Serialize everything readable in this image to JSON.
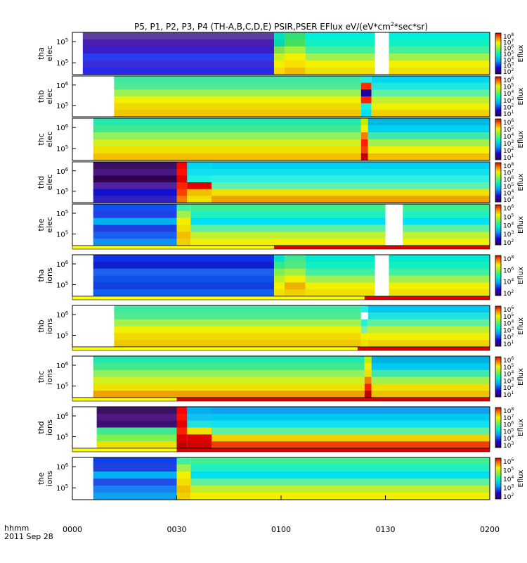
{
  "title": "P5, P1, P2, P3, P4 (TH-A,B,C,D,E) PSIR,PSER EFlux eV/(eV*cm",
  "title_sup": "2",
  "title_end": "*sec*sr)",
  "time_axis": {
    "label_line1": "hhmm",
    "label_line2": "2011 Sep 28",
    "ticks": [
      "0000",
      "0030",
      "0100",
      "0130",
      "0200"
    ],
    "range_minutes": [
      0,
      120
    ]
  },
  "colorbar_unit": "Eflux",
  "chart_data": [
    {
      "type": "heatmap",
      "label": [
        "tha",
        "elec"
      ],
      "yticks": [
        {
          "base": "10",
          "exp": "5"
        },
        {
          "base": "10",
          "exp": "5"
        }
      ],
      "colorbar_ticks": [
        {
          "base": "10",
          "exp": "8"
        },
        {
          "base": "10",
          "exp": "7"
        },
        {
          "base": "10",
          "exp": "6"
        },
        {
          "base": "10",
          "exp": "5"
        },
        {
          "base": "10",
          "exp": "4"
        },
        {
          "base": "10",
          "exp": "3"
        },
        {
          "base": "10",
          "exp": "2"
        }
      ],
      "columns": [
        {
          "x": [
            0,
            3
          ],
          "fill": "white"
        },
        {
          "x": [
            3,
            58
          ],
          "bands": [
            "#5a3f9f",
            "#4a1fb0",
            "#3a1ec8",
            "#2a3cf0",
            "#3a2fd6",
            "#2a28e8"
          ]
        },
        {
          "x": [
            58,
            61
          ],
          "bands": [
            "#00e0c0",
            "#00d8b0",
            "#7ee050",
            "#c8f020",
            "#f0f000",
            "#f8d800"
          ]
        },
        {
          "x": [
            61,
            67
          ],
          "bands": [
            "#30e070",
            "#40e060",
            "#a0f040",
            "#f0f000",
            "#f8e000",
            "#f0c000"
          ]
        },
        {
          "x": [
            67,
            87
          ],
          "bands": [
            "#00f0e0",
            "#10f0c0",
            "#40f0a0",
            "#a0f050",
            "#f0f000",
            "#f0e000"
          ]
        },
        {
          "x": [
            87,
            91
          ],
          "fill": "white"
        },
        {
          "x": [
            91,
            120
          ],
          "bands": [
            "#00f0e0",
            "#10f0c0",
            "#40f0a0",
            "#a0f050",
            "#f0f000",
            "#f0e000"
          ]
        }
      ]
    },
    {
      "type": "heatmap",
      "label": [
        "thb",
        "elec"
      ],
      "yticks": [
        {
          "base": "10",
          "exp": "6"
        },
        {
          "base": "10",
          "exp": "5"
        }
      ],
      "colorbar_ticks": [
        {
          "base": "10",
          "exp": "6"
        },
        {
          "base": "10",
          "exp": "5"
        },
        {
          "base": "10",
          "exp": "4"
        },
        {
          "base": "10",
          "exp": "3"
        },
        {
          "base": "10",
          "exp": "2"
        },
        {
          "base": "10",
          "exp": "1"
        }
      ],
      "columns": [
        {
          "x": [
            0,
            12
          ],
          "fill": "white"
        },
        {
          "x": [
            12,
            83
          ],
          "bands": [
            "#40e8a0",
            "#50e890",
            "#a0f050",
            "#f0f000",
            "#f0d800",
            "#f0c800"
          ]
        },
        {
          "x": [
            83,
            86
          ],
          "bands": [
            "#20f0e0",
            "#ff3000",
            "#2000a0",
            "#ff2000",
            "#10f0e0",
            "#00e0f0"
          ]
        },
        {
          "x": [
            86,
            120
          ],
          "bands": [
            "#00d8f0",
            "#20e8e0",
            "#60f0a0",
            "#c0f030",
            "#f0f000",
            "#f0d000"
          ]
        }
      ]
    },
    {
      "type": "heatmap",
      "label": [
        "thc",
        "elec"
      ],
      "yticks": [
        {
          "base": "10",
          "exp": "6"
        },
        {
          "base": "10",
          "exp": "5"
        }
      ],
      "colorbar_ticks": [
        {
          "base": "10",
          "exp": "6"
        },
        {
          "base": "10",
          "exp": "5"
        },
        {
          "base": "10",
          "exp": "4"
        },
        {
          "base": "10",
          "exp": "3"
        },
        {
          "base": "10",
          "exp": "2"
        },
        {
          "base": "10",
          "exp": "1"
        }
      ],
      "columns": [
        {
          "x": [
            0,
            6
          ],
          "fill": "white"
        },
        {
          "x": [
            6,
            83
          ],
          "bands": [
            "#20e8b0",
            "#40e890",
            "#90f060",
            "#d0f020",
            "#f0e000",
            "#f0c000"
          ]
        },
        {
          "x": [
            83,
            85
          ],
          "bands": [
            "#c0f000",
            "#f0f000",
            "#f08000",
            "#ff2000",
            "#f04000",
            "#c00000"
          ]
        },
        {
          "x": [
            85,
            120
          ],
          "bands": [
            "#00b8e0",
            "#00d0f0",
            "#40e8b0",
            "#a0f050",
            "#f0f000",
            "#f0c000"
          ]
        }
      ]
    },
    {
      "type": "heatmap",
      "label": [
        "thd",
        "elec"
      ],
      "yticks": [
        {
          "base": "10",
          "exp": "6"
        },
        {
          "base": "10",
          "exp": "5"
        }
      ],
      "colorbar_ticks": [
        {
          "base": "10",
          "exp": "8"
        },
        {
          "base": "10",
          "exp": "7"
        },
        {
          "base": "10",
          "exp": "6"
        },
        {
          "base": "10",
          "exp": "5"
        },
        {
          "base": "10",
          "exp": "4"
        },
        {
          "base": "10",
          "exp": "3"
        }
      ],
      "columns": [
        {
          "x": [
            0,
            6
          ],
          "fill": "white"
        },
        {
          "x": [
            6,
            30
          ],
          "bands": [
            "#3a1060",
            "#4a1880",
            "#300050",
            "#5020a0",
            "#1010d0",
            "#3020c0"
          ]
        },
        {
          "x": [
            30,
            33
          ],
          "bands": [
            "#ff0000",
            "#ff1000",
            "#e00000",
            "#ff2000",
            "#ff4000",
            "#f08000"
          ]
        },
        {
          "x": [
            33,
            40
          ],
          "bands": [
            "#00d8f0",
            "#10e0f0",
            "#20f0e0",
            "#e00000",
            "#f0c000",
            "#f0e000"
          ]
        },
        {
          "x": [
            40,
            120
          ],
          "bands": [
            "#00d0f0",
            "#10e0f0",
            "#30f0e0",
            "#60f0b0",
            "#f0e000",
            "#f0a000"
          ]
        }
      ]
    },
    {
      "type": "heatmap",
      "label": [
        "the",
        "elec"
      ],
      "yticks": [
        {
          "base": "10",
          "exp": "5"
        },
        {
          "base": "10",
          "exp": "5"
        }
      ],
      "colorbar_ticks": [
        {
          "base": "10",
          "exp": "6"
        },
        {
          "base": "10",
          "exp": "5"
        },
        {
          "base": "10",
          "exp": "4"
        },
        {
          "base": "10",
          "exp": "3"
        },
        {
          "base": "10",
          "exp": "2"
        }
      ],
      "columns": [
        {
          "x": [
            0,
            6
          ],
          "fill": "white"
        },
        {
          "x": [
            6,
            30
          ],
          "bands": [
            "#1050f0",
            "#2040e8",
            "#00b0f0",
            "#2040e0",
            "#1860f0",
            "#1090f0"
          ]
        },
        {
          "x": [
            30,
            34
          ],
          "bands": [
            "#40f0a0",
            "#a0f050",
            "#f0f000",
            "#f0e000",
            "#f0c000",
            "#f0d000"
          ]
        },
        {
          "x": [
            34,
            90
          ],
          "bands": [
            "#40f090",
            "#20f0c0",
            "#00e0f0",
            "#60f0a0",
            "#c0f030",
            "#f0f000"
          ]
        },
        {
          "x": [
            90,
            95
          ],
          "fill": "white"
        },
        {
          "x": [
            95,
            120
          ],
          "bands": [
            "#40f090",
            "#20f0c0",
            "#00e0f0",
            "#60f0a0",
            "#c0f030",
            "#f0f000"
          ]
        }
      ],
      "flag_bar": [
        {
          "x": [
            0,
            58
          ],
          "color": "#ffff00"
        },
        {
          "x": [
            58,
            120
          ],
          "color": "#e00000"
        }
      ]
    },
    {
      "type": "heatmap",
      "label": [
        "tha",
        "ions"
      ],
      "yticks": [
        {
          "base": "10",
          "exp": "6"
        },
        {
          "base": "10",
          "exp": "5"
        }
      ],
      "colorbar_ticks": [
        {
          "base": "10",
          "exp": "8"
        },
        {
          "base": "10",
          "exp": "6"
        },
        {
          "base": "10",
          "exp": "4"
        },
        {
          "base": "10",
          "exp": "2"
        }
      ],
      "columns": [
        {
          "x": [
            0,
            6
          ],
          "fill": "white"
        },
        {
          "x": [
            6,
            58
          ],
          "bands": [
            "#1030e8",
            "#1020d0",
            "#2060f0",
            "#1050e8",
            "#1040e0",
            "#1060f0"
          ]
        },
        {
          "x": [
            58,
            61
          ],
          "bands": [
            "#00e0d0",
            "#30e890",
            "#80f050",
            "#c0f020",
            "#f0f000",
            "#f0e000"
          ]
        },
        {
          "x": [
            61,
            67
          ],
          "bands": [
            "#40e890",
            "#50e880",
            "#a0f040",
            "#f0f000",
            "#f0b000",
            "#f0d000"
          ]
        },
        {
          "x": [
            67,
            87
          ],
          "bands": [
            "#00e8d0",
            "#10f0c0",
            "#40f0a0",
            "#a0f050",
            "#f0f000",
            "#f0e000"
          ]
        },
        {
          "x": [
            87,
            91
          ],
          "fill": "white"
        },
        {
          "x": [
            91,
            120
          ],
          "bands": [
            "#00e8d0",
            "#10f0c0",
            "#40f0a0",
            "#a0f050",
            "#f0f000",
            "#f0e000"
          ]
        }
      ],
      "flag_bar": [
        {
          "x": [
            0,
            84
          ],
          "color": "#ffff00"
        },
        {
          "x": [
            84,
            120
          ],
          "color": "#e00000"
        }
      ]
    },
    {
      "type": "heatmap",
      "label": [
        "thb",
        "ions"
      ],
      "yticks": [
        {
          "base": "10",
          "exp": "6"
        },
        {
          "base": "10",
          "exp": "5"
        }
      ],
      "colorbar_ticks": [
        {
          "base": "10",
          "exp": "6"
        },
        {
          "base": "10",
          "exp": "5"
        },
        {
          "base": "10",
          "exp": "4"
        },
        {
          "base": "10",
          "exp": "3"
        },
        {
          "base": "10",
          "exp": "2"
        },
        {
          "base": "10",
          "exp": "1"
        }
      ],
      "columns": [
        {
          "x": [
            0,
            12
          ],
          "fill": "white"
        },
        {
          "x": [
            12,
            83
          ],
          "bands": [
            "#40e8a0",
            "#50e890",
            "#a0f050",
            "#f0f000",
            "#f0d800",
            "#f0c800"
          ]
        },
        {
          "x": [
            83,
            85
          ],
          "bands": [
            "#20f0e0",
            "#ffffff",
            "#30f0d0",
            "#80f0a0",
            "#f0f000",
            "#f0e000"
          ]
        },
        {
          "x": [
            85,
            120
          ],
          "bands": [
            "#00c8f0",
            "#20e0e0",
            "#60f0a0",
            "#c0f030",
            "#f0f000",
            "#f0d000"
          ]
        }
      ],
      "flag_bar": [
        {
          "x": [
            0,
            82
          ],
          "color": "#ffff00"
        },
        {
          "x": [
            82,
            120
          ],
          "color": "#e00000"
        }
      ]
    },
    {
      "type": "heatmap",
      "label": [
        "thc",
        "ions"
      ],
      "yticks": [
        {
          "base": "10",
          "exp": "6"
        },
        {
          "base": "10",
          "exp": "5"
        }
      ],
      "colorbar_ticks": [
        {
          "base": "10",
          "exp": "6"
        },
        {
          "base": "10",
          "exp": "5"
        },
        {
          "base": "10",
          "exp": "4"
        },
        {
          "base": "10",
          "exp": "3"
        },
        {
          "base": "10",
          "exp": "2"
        },
        {
          "base": "10",
          "exp": "1"
        }
      ],
      "columns": [
        {
          "x": [
            0,
            6
          ],
          "fill": "white"
        },
        {
          "x": [
            6,
            84
          ],
          "bands": [
            "#20e8b0",
            "#40e890",
            "#90f060",
            "#d0f020",
            "#f0e000",
            "#f0a000"
          ]
        },
        {
          "x": [
            84,
            86
          ],
          "bands": [
            "#c0f000",
            "#f0f000",
            "#f0e000",
            "#f08000",
            "#ff2000",
            "#c00000"
          ]
        },
        {
          "x": [
            86,
            120
          ],
          "bands": [
            "#00b0e0",
            "#00c8f0",
            "#40e8b0",
            "#a0f050",
            "#f0e000",
            "#f0c000"
          ]
        }
      ],
      "flag_bar": [
        {
          "x": [
            0,
            30
          ],
          "color": "#ffff00"
        },
        {
          "x": [
            30,
            120
          ],
          "color": "#e00000"
        }
      ]
    },
    {
      "type": "heatmap",
      "label": [
        "thd",
        "ions"
      ],
      "yticks": [
        {
          "base": "10",
          "exp": "6"
        },
        {
          "base": "10",
          "exp": "5"
        }
      ],
      "colorbar_ticks": [
        {
          "base": "10",
          "exp": "8"
        },
        {
          "base": "10",
          "exp": "7"
        },
        {
          "base": "10",
          "exp": "6"
        },
        {
          "base": "10",
          "exp": "5"
        },
        {
          "base": "10",
          "exp": "4"
        },
        {
          "base": "10",
          "exp": "3"
        }
      ],
      "columns": [
        {
          "x": [
            0,
            7
          ],
          "fill": "white"
        },
        {
          "x": [
            7,
            30
          ],
          "bands": [
            "#3a1060",
            "#501880",
            "#3a1070",
            "#40e890",
            "#80f050",
            "#f0e000"
          ]
        },
        {
          "x": [
            30,
            33
          ],
          "bands": [
            "#ff0000",
            "#ff1000",
            "#e00000",
            "#ff2000",
            "#e00000",
            "#c00000"
          ]
        },
        {
          "x": [
            33,
            40
          ],
          "bands": [
            "#00b0f0",
            "#10c0f0",
            "#20e0e0",
            "#f0e000",
            "#e00000",
            "#d00000"
          ]
        },
        {
          "x": [
            40,
            120
          ],
          "bands": [
            "#10a0f0",
            "#00c8f0",
            "#10e0f0",
            "#60f0a0",
            "#f0d000",
            "#f04000"
          ]
        }
      ],
      "flag_bar": [
        {
          "x": [
            0,
            30
          ],
          "color": "#ffff00"
        },
        {
          "x": [
            30,
            120
          ],
          "color": "#e00000"
        }
      ]
    },
    {
      "type": "heatmap",
      "label": [
        "the",
        "ions"
      ],
      "yticks": [
        {
          "base": "10",
          "exp": "6"
        },
        {
          "base": "10",
          "exp": "5"
        }
      ],
      "colorbar_ticks": [
        {
          "base": "10",
          "exp": "6"
        },
        {
          "base": "10",
          "exp": "5"
        },
        {
          "base": "10",
          "exp": "4"
        },
        {
          "base": "10",
          "exp": "3"
        },
        {
          "base": "10",
          "exp": "2"
        }
      ],
      "columns": [
        {
          "x": [
            0,
            6
          ],
          "fill": "white"
        },
        {
          "x": [
            6,
            30
          ],
          "bands": [
            "#1040e8",
            "#2040e0",
            "#00b0f0",
            "#2050e8",
            "#1880f0",
            "#10a0f0"
          ]
        },
        {
          "x": [
            30,
            34
          ],
          "bands": [
            "#40f0a0",
            "#a0f050",
            "#f0f000",
            "#f0e000",
            "#f0c000",
            "#f0d000"
          ]
        },
        {
          "x": [
            34,
            120
          ],
          "bands": [
            "#40f090",
            "#20f0c0",
            "#00e0f0",
            "#60f0a0",
            "#c0f030",
            "#f0f000"
          ]
        }
      ]
    }
  ]
}
